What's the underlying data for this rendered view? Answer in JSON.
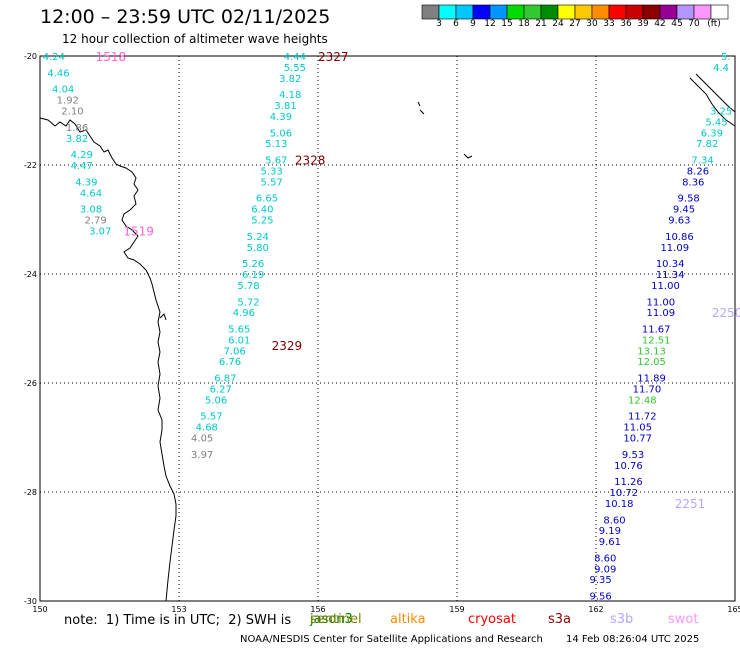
{
  "title": "12:00 – 23:59 UTC 02/11/2025",
  "subtitle": "12 hour collection of altimeter wave heights",
  "legend": {
    "unit_label": "(ft)",
    "colors": [
      "#808080",
      "#00ffff",
      "#00c8ff",
      "#0000ff",
      "#0096ff",
      "#00dc00",
      "#32c832",
      "#008c00",
      "#ffff00",
      "#ffc800",
      "#ff8c00",
      "#ff0000",
      "#c80000",
      "#8c0000",
      "#960096",
      "#b496ff",
      "#ff96ff",
      "#ffffff"
    ],
    "labels": [
      "3",
      "6",
      "9",
      "12",
      "15",
      "18",
      "21",
      "24",
      "27",
      "30",
      "33",
      "36",
      "39",
      "42",
      "45",
      "70"
    ]
  },
  "axes": {
    "lon_labels": [
      "150",
      "153",
      "156",
      "159",
      "162",
      "165"
    ],
    "lat_labels": [
      "-20",
      "-22",
      "-24",
      "-26",
      "-28",
      "-30"
    ]
  },
  "passes": [
    {
      "id": "1518",
      "lon": 151.2,
      "lat": -20.0,
      "color": "#ff66cc"
    },
    {
      "id": "2327",
      "lon": 156.0,
      "lat": -20.0,
      "color": "#800000"
    },
    {
      "id": "2328",
      "lon": 155.5,
      "lat": -21.9,
      "color": "#800000"
    },
    {
      "id": "1519",
      "lon": 151.8,
      "lat": -23.2,
      "color": "#ff66cc"
    },
    {
      "id": "2329",
      "lon": 155.0,
      "lat": -25.3,
      "color": "#800000"
    },
    {
      "id": "2250",
      "lon": 164.5,
      "lat": -24.7,
      "color": "#b4a8ff"
    },
    {
      "id": "2251",
      "lon": 163.7,
      "lat": -28.2,
      "color": "#b4a8ff"
    }
  ],
  "tracks": {
    "track_1518": [
      {
        "v": "4.24",
        "lon": 150.3,
        "lat": -20.0,
        "c": "#00c8c8"
      },
      {
        "v": "4.46",
        "lon": 150.4,
        "lat": -20.3,
        "c": "#00c8c8"
      },
      {
        "v": "4.04",
        "lon": 150.5,
        "lat": -20.6,
        "c": "#00c8c8"
      },
      {
        "v": "1.92",
        "lon": 150.6,
        "lat": -20.8,
        "c": "#808080"
      },
      {
        "v": "2.10",
        "lon": 150.7,
        "lat": -21.0,
        "c": "#808080"
      },
      {
        "v": "1.86",
        "lon": 150.8,
        "lat": -21.3,
        "c": "#808080"
      },
      {
        "v": "3.82",
        "lon": 150.8,
        "lat": -21.5,
        "c": "#00c8c8"
      },
      {
        "v": "4.29",
        "lon": 150.9,
        "lat": -21.8,
        "c": "#00c8c8"
      },
      {
        "v": "4.47",
        "lon": 150.9,
        "lat": -22.0,
        "c": "#00c8c8"
      },
      {
        "v": "4.39",
        "lon": 151.0,
        "lat": -22.3,
        "c": "#00c8c8"
      },
      {
        "v": "4.64",
        "lon": 151.1,
        "lat": -22.5,
        "c": "#00c8c8"
      },
      {
        "v": "3.08",
        "lon": 151.1,
        "lat": -22.8,
        "c": "#00c8c8"
      },
      {
        "v": "2.79",
        "lon": 151.2,
        "lat": -23.0,
        "c": "#808080"
      },
      {
        "v": "3.07",
        "lon": 151.3,
        "lat": -23.2,
        "c": "#00c8c8"
      }
    ],
    "track_2327": [
      {
        "v": "4.44",
        "lon": 155.5,
        "lat": -20.0,
        "c": "#00c8c8"
      },
      {
        "v": "5.55",
        "lon": 155.5,
        "lat": -20.2,
        "c": "#00c8c8"
      },
      {
        "v": "3.82",
        "lon": 155.4,
        "lat": -20.4,
        "c": "#00c8c8"
      },
      {
        "v": "4.18",
        "lon": 155.4,
        "lat": -20.7,
        "c": "#00c8c8"
      },
      {
        "v": "3.81",
        "lon": 155.3,
        "lat": -20.9,
        "c": "#00c8c8"
      },
      {
        "v": "4.39",
        "lon": 155.2,
        "lat": -21.1,
        "c": "#00c8c8"
      },
      {
        "v": "5.06",
        "lon": 155.2,
        "lat": -21.4,
        "c": "#00c8c8"
      },
      {
        "v": "5.13",
        "lon": 155.1,
        "lat": -21.6,
        "c": "#00c8c8"
      },
      {
        "v": "5.67",
        "lon": 155.1,
        "lat": -21.9,
        "c": "#00c8c8"
      },
      {
        "v": "5.33",
        "lon": 155.0,
        "lat": -22.1,
        "c": "#00c8c8"
      },
      {
        "v": "5.57",
        "lon": 155.0,
        "lat": -22.3,
        "c": "#00c8c8"
      },
      {
        "v": "6.65",
        "lon": 154.9,
        "lat": -22.6,
        "c": "#00c8c8"
      },
      {
        "v": "6.40",
        "lon": 154.8,
        "lat": -22.8,
        "c": "#00c8c8"
      },
      {
        "v": "5.25",
        "lon": 154.8,
        "lat": -23.0,
        "c": "#00c8c8"
      },
      {
        "v": "5.24",
        "lon": 154.7,
        "lat": -23.3,
        "c": "#00c8c8"
      },
      {
        "v": "5.80",
        "lon": 154.7,
        "lat": -23.5,
        "c": "#00c8c8"
      },
      {
        "v": "5.26",
        "lon": 154.6,
        "lat": -23.8,
        "c": "#00c8c8"
      },
      {
        "v": "6.19",
        "lon": 154.6,
        "lat": -24.0,
        "c": "#00c8c8"
      },
      {
        "v": "5.78",
        "lon": 154.5,
        "lat": -24.2,
        "c": "#00c8c8"
      },
      {
        "v": "5.72",
        "lon": 154.5,
        "lat": -24.5,
        "c": "#00c8c8"
      },
      {
        "v": "4.96",
        "lon": 154.4,
        "lat": -24.7,
        "c": "#00c8c8"
      },
      {
        "v": "5.65",
        "lon": 154.3,
        "lat": -25.0,
        "c": "#00c8c8"
      },
      {
        "v": "6.01",
        "lon": 154.3,
        "lat": -25.2,
        "c": "#00c8c8"
      },
      {
        "v": "7.06",
        "lon": 154.2,
        "lat": -25.4,
        "c": "#00c8c8"
      },
      {
        "v": "6.76",
        "lon": 154.1,
        "lat": -25.6,
        "c": "#00c8c8"
      },
      {
        "v": "6.87",
        "lon": 154.0,
        "lat": -25.9,
        "c": "#00c8c8"
      },
      {
        "v": "6.27",
        "lon": 153.9,
        "lat": -26.1,
        "c": "#00c8c8"
      },
      {
        "v": "5.06",
        "lon": 153.8,
        "lat": -26.3,
        "c": "#00c8c8"
      },
      {
        "v": "5.57",
        "lon": 153.7,
        "lat": -26.6,
        "c": "#00c8c8"
      },
      {
        "v": "4.68",
        "lon": 153.6,
        "lat": -26.8,
        "c": "#00c8c8"
      },
      {
        "v": "4.05",
        "lon": 153.5,
        "lat": -27.0,
        "c": "#808080"
      },
      {
        "v": "3.97",
        "lon": 153.5,
        "lat": -27.3,
        "c": "#808080"
      }
    ],
    "track_2250": [
      {
        "v": "5.",
        "lon": 164.8,
        "lat": -20.0,
        "c": "#00c8c8"
      },
      {
        "v": "4.4",
        "lon": 164.7,
        "lat": -20.2,
        "c": "#00c8c8"
      },
      {
        "v": "3.25",
        "lon": 164.7,
        "lat": -21.0,
        "c": "#00c8c8"
      },
      {
        "v": "5.45",
        "lon": 164.6,
        "lat": -21.2,
        "c": "#00c8c8"
      },
      {
        "v": "6.39",
        "lon": 164.5,
        "lat": -21.4,
        "c": "#00c8c8"
      },
      {
        "v": "7.82",
        "lon": 164.4,
        "lat": -21.6,
        "c": "#00c8c8"
      },
      {
        "v": "7.34",
        "lon": 164.3,
        "lat": -21.9,
        "c": "#00c8c8"
      },
      {
        "v": "8.26",
        "lon": 164.2,
        "lat": -22.1,
        "c": "#0000c8"
      },
      {
        "v": "8.36",
        "lon": 164.1,
        "lat": -22.3,
        "c": "#0000c8"
      },
      {
        "v": "9.58",
        "lon": 164.0,
        "lat": -22.6,
        "c": "#0000c8"
      },
      {
        "v": "9.45",
        "lon": 163.9,
        "lat": -22.8,
        "c": "#0000c8"
      },
      {
        "v": "9.63",
        "lon": 163.8,
        "lat": -23.0,
        "c": "#0000c8"
      },
      {
        "v": "10.86",
        "lon": 163.8,
        "lat": -23.3,
        "c": "#0000c8"
      },
      {
        "v": "11.09",
        "lon": 163.7,
        "lat": -23.5,
        "c": "#0000c8"
      },
      {
        "v": "10.34",
        "lon": 163.6,
        "lat": -23.8,
        "c": "#0000c8"
      },
      {
        "v": "11.34",
        "lon": 163.6,
        "lat": -24.0,
        "c": "#0000c8"
      },
      {
        "v": "11.00",
        "lon": 163.5,
        "lat": -24.2,
        "c": "#0000c8"
      },
      {
        "v": "11.00",
        "lon": 163.4,
        "lat": -24.5,
        "c": "#0000c8"
      },
      {
        "v": "11.09",
        "lon": 163.4,
        "lat": -24.7,
        "c": "#0000c8"
      },
      {
        "v": "11.67",
        "lon": 163.3,
        "lat": -25.0,
        "c": "#0000c8"
      },
      {
        "v": "12.51",
        "lon": 163.3,
        "lat": -25.2,
        "c": "#32c832"
      },
      {
        "v": "13.13",
        "lon": 163.2,
        "lat": -25.4,
        "c": "#32c832"
      },
      {
        "v": "12.05",
        "lon": 163.2,
        "lat": -25.6,
        "c": "#32c832"
      },
      {
        "v": "11.89",
        "lon": 163.2,
        "lat": -25.9,
        "c": "#0000c8"
      },
      {
        "v": "11.70",
        "lon": 163.1,
        "lat": -26.1,
        "c": "#0000c8"
      },
      {
        "v": "12.48",
        "lon": 163.0,
        "lat": -26.3,
        "c": "#32c832"
      },
      {
        "v": "11.72",
        "lon": 163.0,
        "lat": -26.6,
        "c": "#0000c8"
      },
      {
        "v": "11.05",
        "lon": 162.9,
        "lat": -26.8,
        "c": "#0000c8"
      },
      {
        "v": "10.77",
        "lon": 162.9,
        "lat": -27.0,
        "c": "#0000c8"
      },
      {
        "v": "9.53",
        "lon": 162.8,
        "lat": -27.3,
        "c": "#0000c8"
      },
      {
        "v": "10.76",
        "lon": 162.7,
        "lat": -27.5,
        "c": "#0000c8"
      },
      {
        "v": "11.26",
        "lon": 162.7,
        "lat": -27.8,
        "c": "#0000c8"
      },
      {
        "v": "10.72",
        "lon": 162.6,
        "lat": -28.0,
        "c": "#0000c8"
      },
      {
        "v": "10.18",
        "lon": 162.5,
        "lat": -28.2,
        "c": "#0000c8"
      },
      {
        "v": "8.60",
        "lon": 162.4,
        "lat": -28.5,
        "c": "#0000c8"
      },
      {
        "v": "9.19",
        "lon": 162.3,
        "lat": -28.7,
        "c": "#0000c8"
      },
      {
        "v": "9.61",
        "lon": 162.3,
        "lat": -28.9,
        "c": "#0000c8"
      },
      {
        "v": "8.60",
        "lon": 162.2,
        "lat": -29.2,
        "c": "#0000c8"
      },
      {
        "v": "9.09",
        "lon": 162.2,
        "lat": -29.4,
        "c": "#0000c8"
      },
      {
        "v": "9.35",
        "lon": 162.1,
        "lat": -29.6,
        "c": "#0000c8"
      },
      {
        "v": "9.56",
        "lon": 162.1,
        "lat": -29.9,
        "c": "#0000c8"
      }
    ]
  },
  "footer": {
    "note": "note:  1) Time is in UTC;  2) SWH is",
    "satellites": [
      {
        "label": "jason3",
        "color": "#008000"
      },
      {
        "label": "sentinel",
        "color": "#808000"
      },
      {
        "label": "altika",
        "color": "#ff8c00"
      },
      {
        "label": "cryosat",
        "color": "#ff0000"
      },
      {
        "label": "s3a",
        "color": "#8b0000"
      },
      {
        "label": "s3b",
        "color": "#b4a8ff"
      },
      {
        "label": "swot",
        "color": "#ff96ff"
      }
    ],
    "credit": "NOAA/NESDIS Center for Satellite Applications and Research",
    "timestamp": "14 Feb 08:26:04 UTC 2025"
  }
}
